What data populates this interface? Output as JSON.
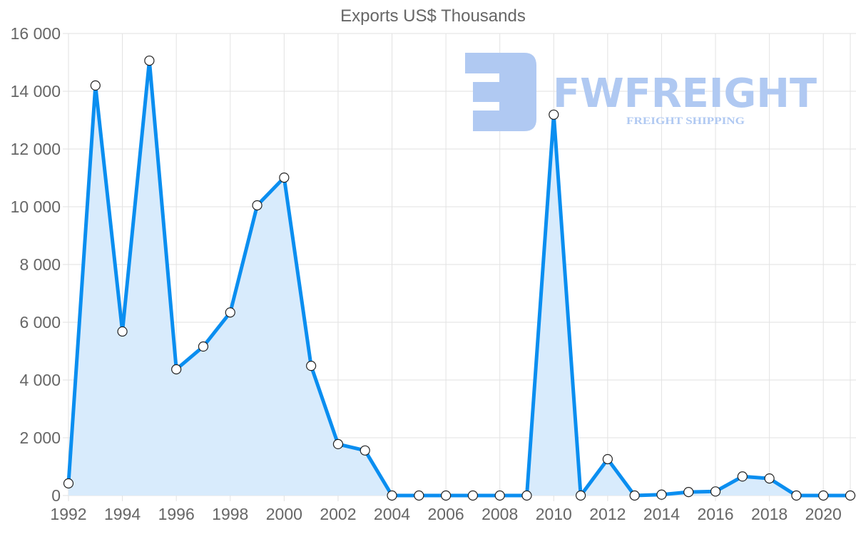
{
  "chart_data": {
    "type": "area",
    "title": "Exports US$ Thousands",
    "xlabel": "",
    "ylabel": "",
    "x": [
      1992,
      1993,
      1994,
      1995,
      1996,
      1997,
      1998,
      1999,
      2000,
      2001,
      2002,
      2003,
      2004,
      2005,
      2006,
      2007,
      2008,
      2009,
      2010,
      2011,
      2012,
      2013,
      2014,
      2015,
      2016,
      2017,
      2018,
      2019,
      2020,
      2021
    ],
    "series": [
      {
        "name": "Exports US$ Thousands",
        "values": [
          420,
          14200,
          5680,
          15060,
          4370,
          5160,
          6340,
          10050,
          11010,
          4490,
          1780,
          1560,
          0,
          0,
          0,
          0,
          0,
          0,
          13190,
          0,
          1260,
          0,
          30,
          120,
          140,
          660,
          590,
          0,
          0,
          0
        ]
      }
    ],
    "xlim": [
      1992,
      2021
    ],
    "ylim": [
      0,
      16000
    ],
    "yticks": [
      "0",
      "2 000",
      "4 000",
      "6 000",
      "8 000",
      "10 000",
      "12 000",
      "14 000",
      "16 000"
    ],
    "xticks": [
      "1992",
      "1994",
      "1996",
      "1998",
      "2000",
      "2002",
      "2004",
      "2006",
      "2008",
      "2010",
      "2012",
      "2014",
      "2016",
      "2018",
      "2020"
    ],
    "grid": true,
    "legend": "none",
    "colors": {
      "line": "#0a8ef0",
      "fill": "#d8ebfc",
      "marker_fill": "#ffffff",
      "marker_stroke": "#222222"
    }
  },
  "watermark": {
    "brand": "FWFREIGHT",
    "tagline": "FREIGHT SHIPPING",
    "color": "#b0c9f2"
  }
}
